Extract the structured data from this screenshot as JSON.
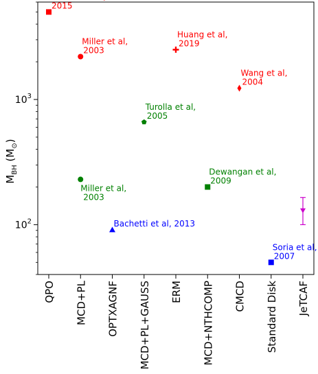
{
  "chart_data": {
    "type": "scatter",
    "xlabel": "",
    "ylabel": "M",
    "ylabel_sub": "BH",
    "ylabel_unit": " (M",
    "ylabel_unit_sym": "⊙",
    "ylabel_close": ")",
    "yscale": "log",
    "ylim": [
      40,
      6000
    ],
    "grid": false,
    "y_ticks": [
      {
        "value": 100,
        "base": "10",
        "exp": "2"
      },
      {
        "value": 1000,
        "base": "10",
        "exp": "3"
      }
    ],
    "categories": [
      "QPO",
      "MCD+PL",
      "OPTXAGNF",
      "MCD+PL+GAUSS",
      "ERM",
      "MCD+NTHCOMP",
      "CMCD",
      "Standard Disk",
      "JeTCAF"
    ],
    "points": [
      {
        "category": "QPO",
        "y": 5000,
        "marker": "square",
        "color": "#ff0000",
        "label_lines": [
          "Pasham et al,",
          "2015"
        ],
        "label_pos": "above-right"
      },
      {
        "category": "MCD+PL",
        "y": 2200,
        "marker": "circle",
        "color": "#ff0000",
        "label_lines": [
          "Miller et al,",
          "2003"
        ],
        "label_pos": "above-right"
      },
      {
        "category": "ERM",
        "y": 2500,
        "marker": "plus",
        "color": "#ff0000",
        "label_lines": [
          "Huang et al,",
          "2019"
        ],
        "label_pos": "above-right"
      },
      {
        "category": "CMCD",
        "y": 1230,
        "marker": "diamond",
        "color": "#ff0000",
        "label_lines": [
          "Wang et al,",
          "2004"
        ],
        "label_pos": "above-right"
      },
      {
        "category": "MCD+PL+GAUSS",
        "y": 660,
        "marker": "pentagon",
        "color": "#008000",
        "label_lines": [
          "Turolla et al,",
          "2005"
        ],
        "label_pos": "above-right"
      },
      {
        "category": "MCD+PL",
        "y": 230,
        "marker": "circle",
        "color": "#008000",
        "label_lines": [
          "Miller et al,",
          "2003"
        ],
        "label_pos": "below"
      },
      {
        "category": "MCD+NTHCOMP",
        "y": 200,
        "marker": "square",
        "color": "#008000",
        "label_lines": [
          "Dewangan et al,",
          "2009"
        ],
        "label_pos": "above-right"
      },
      {
        "category": "OPTXAGNF",
        "y": 91,
        "marker": "triangle",
        "color": "#0000ff",
        "label_lines": [
          "Bachetti et al, 2013"
        ],
        "label_pos": "above-right"
      },
      {
        "category": "Standard Disk",
        "y": 50,
        "marker": "square",
        "color": "#0000ff",
        "label_lines": [
          "Soria et al,",
          "2007"
        ],
        "label_pos": "above-right"
      },
      {
        "category": "JeTCAF",
        "y": 130,
        "y_err_low": 100,
        "y_err_high": 165,
        "marker": "triangle-down",
        "color": "#cc00cc",
        "label_lines": [],
        "label_pos": "none"
      }
    ]
  }
}
